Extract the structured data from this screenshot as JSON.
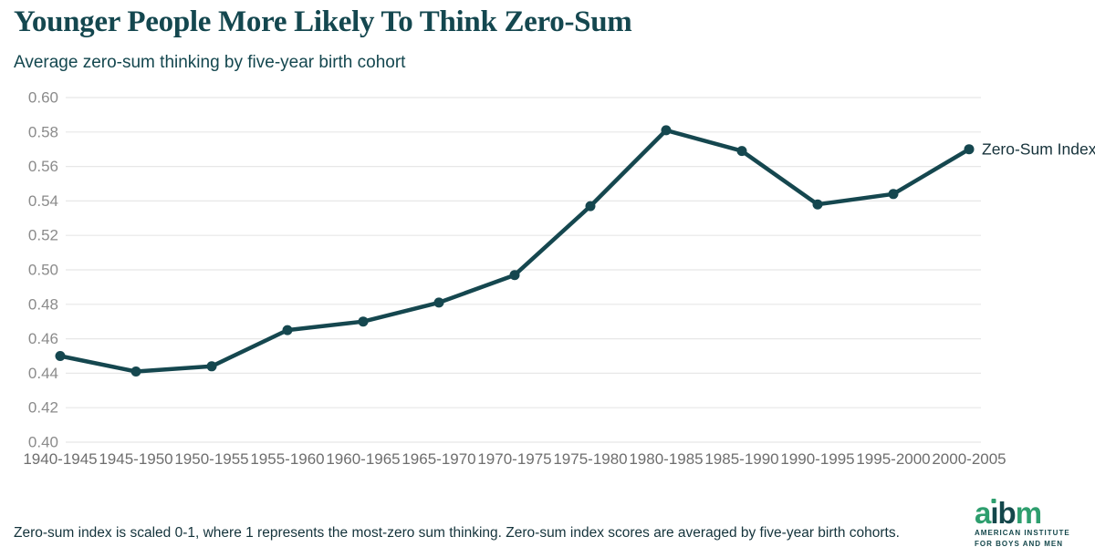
{
  "header": {
    "title": "Younger People More Likely To Think Zero-Sum",
    "subtitle": "Average zero-sum thinking by five-year birth cohort"
  },
  "chart_data": {
    "type": "line",
    "categories": [
      "1940-1945",
      "1945-1950",
      "1950-1955",
      "1955-1960",
      "1960-1965",
      "1965-1970",
      "1970-1975",
      "1975-1980",
      "1980-1985",
      "1985-1990",
      "1990-1995",
      "1995-2000",
      "2000-2005"
    ],
    "series": [
      {
        "name": "Zero-Sum Index",
        "values": [
          0.45,
          0.441,
          0.444,
          0.465,
          0.47,
          0.481,
          0.497,
          0.537,
          0.581,
          0.569,
          0.538,
          0.544,
          0.57
        ]
      }
    ],
    "title": "Younger People More Likely To Think Zero-Sum",
    "subtitle": "Average zero-sum thinking by five-year birth cohort",
    "xlabel": "",
    "ylabel": "",
    "ylim": [
      0.4,
      0.6
    ],
    "yticks": [
      0.4,
      0.42,
      0.44,
      0.46,
      0.48,
      0.5,
      0.52,
      0.54,
      0.56,
      0.58,
      0.6
    ],
    "grid": "horizontal",
    "legend_position": "right-of-last-point",
    "legend_label": "Zero-Sum Index",
    "colors": {
      "line": "#15474F",
      "point": "#15474F",
      "gridline": "#E7E7E7",
      "y_tick_label": "#8B8B8B",
      "x_tick_label": "#6E6E6E",
      "legend_text": "#17333B"
    }
  },
  "footer": {
    "note": "Zero-sum index is scaled 0-1, where 1 represents the most-zero sum thinking. Zero-sum index scores are averaged by five-year birth cohorts.",
    "logo": {
      "word": "aibm",
      "letters": [
        {
          "ch": "a",
          "color": "green"
        },
        {
          "ch": "i",
          "color": "dark",
          "dot": "green"
        },
        {
          "ch": "b",
          "color": "dark"
        },
        {
          "ch": "m",
          "color": "green"
        }
      ],
      "caption_line1": "AMERICAN INSTITUTE",
      "caption_line2": "FOR BOYS AND MEN",
      "green": "#2E9E6E",
      "dark": "#14474B"
    }
  }
}
